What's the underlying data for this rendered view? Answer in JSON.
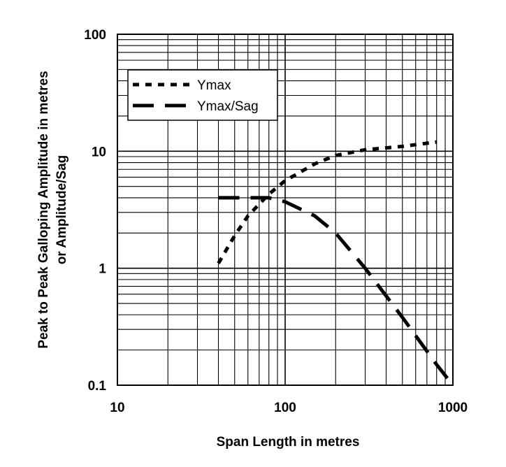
{
  "chart_data": {
    "type": "line",
    "title": "",
    "xlabel": "Span Length in metres",
    "ylabel": [
      "Peak to Peak Galloping Amplitude in metres",
      "or Amplitude/Sag"
    ],
    "xscale": "log",
    "yscale": "log",
    "xlim": [
      10,
      1000
    ],
    "ylim": [
      0.1,
      100
    ],
    "grid": true,
    "legend_position": "top-left",
    "x_tick_labels": [
      "10",
      "100",
      "1000"
    ],
    "y_tick_labels": [
      "0.1",
      "1",
      "10",
      "100"
    ],
    "series": [
      {
        "name": "Ymax",
        "dash": "short",
        "x": [
          40,
          50,
          60,
          80,
          100,
          150,
          200,
          300,
          500,
          800
        ],
        "y": [
          1.1,
          1.9,
          2.8,
          4.3,
          5.6,
          7.8,
          9.2,
          10.3,
          11.0,
          12.0
        ]
      },
      {
        "name": "Ymax/Sag",
        "dash": "long",
        "x": [
          40,
          60,
          80,
          100,
          150,
          200,
          300,
          500,
          800,
          1000
        ],
        "y": [
          4.0,
          4.0,
          4.0,
          3.7,
          2.8,
          2.0,
          1.0,
          0.38,
          0.15,
          0.1
        ]
      }
    ]
  }
}
